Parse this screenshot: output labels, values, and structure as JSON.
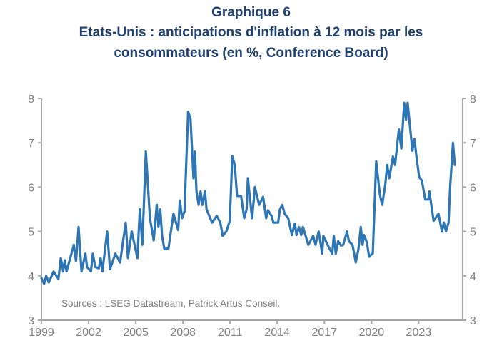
{
  "chart_data": {
    "type": "line",
    "title": [
      "Graphique 6",
      "Etats-Unis : anticipations d'inflation à 12 mois  par les",
      "consommateurs (en %, Conference Board)"
    ],
    "xlabel": "",
    "ylabel": "",
    "xlim": [
      1999,
      2025.8
    ],
    "ylim": [
      3,
      8
    ],
    "x_ticks": [
      1999,
      2002,
      2005,
      2008,
      2011,
      2014,
      2017,
      2020,
      2023
    ],
    "x_tick_labels": [
      "1999",
      "2002",
      "2005",
      "2008",
      "2011",
      "2014",
      "2017",
      "2020",
      "2023"
    ],
    "y_ticks": [
      3,
      4,
      5,
      6,
      7,
      8
    ],
    "y_tick_labels": [
      "3",
      "4",
      "5",
      "6",
      "7",
      "8"
    ],
    "grid": false,
    "source": "Sources : LSEG Datastream, Patrick Artus Conseil.",
    "series": [
      {
        "name": "Anticipations d'inflation à 12 mois",
        "color": "#2e75b6",
        "points": [
          [
            1999.0,
            3.95
          ],
          [
            1999.17,
            3.82
          ],
          [
            1999.3,
            4.0
          ],
          [
            1999.47,
            3.85
          ],
          [
            1999.77,
            4.1
          ],
          [
            2000.08,
            3.93
          ],
          [
            2000.23,
            4.4
          ],
          [
            2000.38,
            4.1
          ],
          [
            2000.48,
            4.35
          ],
          [
            2000.6,
            4.1
          ],
          [
            2001.06,
            4.7
          ],
          [
            2001.2,
            4.33
          ],
          [
            2001.36,
            5.1
          ],
          [
            2001.55,
            4.1
          ],
          [
            2001.8,
            4.5
          ],
          [
            2001.9,
            4.2
          ],
          [
            2002.15,
            4.1
          ],
          [
            2002.27,
            4.5
          ],
          [
            2002.42,
            4.2
          ],
          [
            2002.65,
            4.17
          ],
          [
            2002.76,
            4.4
          ],
          [
            2002.88,
            4.1
          ],
          [
            2003.18,
            5.0
          ],
          [
            2003.36,
            4.15
          ],
          [
            2003.7,
            4.5
          ],
          [
            2004.0,
            4.3
          ],
          [
            2004.36,
            5.2
          ],
          [
            2004.5,
            4.4
          ],
          [
            2004.74,
            5.0
          ],
          [
            2005.1,
            4.4
          ],
          [
            2005.26,
            5.5
          ],
          [
            2005.42,
            4.7
          ],
          [
            2005.64,
            6.8
          ],
          [
            2005.9,
            5.3
          ],
          [
            2006.14,
            4.8
          ],
          [
            2006.33,
            5.6
          ],
          [
            2006.44,
            5.1
          ],
          [
            2006.56,
            5.5
          ],
          [
            2006.67,
            4.9
          ],
          [
            2006.82,
            4.6
          ],
          [
            2007.08,
            4.62
          ],
          [
            2007.4,
            5.4
          ],
          [
            2007.7,
            5.03
          ],
          [
            2007.8,
            5.7
          ],
          [
            2007.95,
            5.3
          ],
          [
            2008.1,
            5.45
          ],
          [
            2008.33,
            7.7
          ],
          [
            2008.48,
            7.55
          ],
          [
            2008.67,
            6.2
          ],
          [
            2008.76,
            6.8
          ],
          [
            2008.86,
            5.9
          ],
          [
            2009.0,
            5.6
          ],
          [
            2009.12,
            5.9
          ],
          [
            2009.24,
            5.6
          ],
          [
            2009.4,
            5.9
          ],
          [
            2009.5,
            5.5
          ],
          [
            2009.85,
            5.2
          ],
          [
            2010.15,
            5.35
          ],
          [
            2010.38,
            5.2
          ],
          [
            2010.53,
            4.9
          ],
          [
            2010.76,
            5.0
          ],
          [
            2010.98,
            5.24
          ],
          [
            2011.14,
            6.7
          ],
          [
            2011.3,
            6.5
          ],
          [
            2011.44,
            5.8
          ],
          [
            2011.7,
            5.8
          ],
          [
            2011.9,
            5.3
          ],
          [
            2012.05,
            5.5
          ],
          [
            2012.13,
            6.2
          ],
          [
            2012.4,
            5.3
          ],
          [
            2012.58,
            6.0
          ],
          [
            2012.85,
            5.6
          ],
          [
            2013.1,
            5.78
          ],
          [
            2013.3,
            5.3
          ],
          [
            2013.41,
            5.48
          ],
          [
            2013.64,
            5.35
          ],
          [
            2013.76,
            5.2
          ],
          [
            2014.06,
            5.2
          ],
          [
            2014.17,
            5.5
          ],
          [
            2014.32,
            5.6
          ],
          [
            2014.47,
            5.4
          ],
          [
            2014.7,
            5.3
          ],
          [
            2014.93,
            4.92
          ],
          [
            2015.12,
            5.18
          ],
          [
            2015.23,
            4.92
          ],
          [
            2015.38,
            5.1
          ],
          [
            2015.53,
            4.92
          ],
          [
            2015.64,
            5.1
          ],
          [
            2015.98,
            4.7
          ],
          [
            2016.29,
            4.9
          ],
          [
            2016.44,
            4.7
          ],
          [
            2016.64,
            5.0
          ],
          [
            2016.86,
            4.5
          ],
          [
            2016.94,
            4.9
          ],
          [
            2017.2,
            4.7
          ],
          [
            2017.5,
            4.5
          ],
          [
            2017.6,
            4.9
          ],
          [
            2017.73,
            4.5
          ],
          [
            2017.88,
            4.78
          ],
          [
            2018.06,
            4.68
          ],
          [
            2018.2,
            4.7
          ],
          [
            2018.44,
            5.0
          ],
          [
            2018.56,
            4.78
          ],
          [
            2018.79,
            4.7
          ],
          [
            2019.0,
            4.3
          ],
          [
            2019.17,
            4.6
          ],
          [
            2019.32,
            5.1
          ],
          [
            2019.43,
            4.7
          ],
          [
            2019.52,
            4.92
          ],
          [
            2019.7,
            4.76
          ],
          [
            2019.85,
            4.43
          ],
          [
            2020.08,
            4.51
          ],
          [
            2020.3,
            6.58
          ],
          [
            2020.53,
            5.83
          ],
          [
            2020.68,
            5.6
          ],
          [
            2020.88,
            6.07
          ],
          [
            2021.0,
            6.5
          ],
          [
            2021.13,
            6.2
          ],
          [
            2021.36,
            6.69
          ],
          [
            2021.5,
            6.5
          ],
          [
            2021.74,
            7.3
          ],
          [
            2021.9,
            6.87
          ],
          [
            2022.08,
            7.9
          ],
          [
            2022.2,
            7.52
          ],
          [
            2022.3,
            7.9
          ],
          [
            2022.6,
            6.82
          ],
          [
            2022.73,
            7.09
          ],
          [
            2022.85,
            6.71
          ],
          [
            2023.03,
            6.23
          ],
          [
            2023.2,
            6.15
          ],
          [
            2023.42,
            5.72
          ],
          [
            2023.62,
            5.72
          ],
          [
            2023.68,
            5.9
          ],
          [
            2023.95,
            5.24
          ],
          [
            2024.26,
            5.4
          ],
          [
            2024.48,
            5.0
          ],
          [
            2024.6,
            5.2
          ],
          [
            2024.74,
            5.0
          ],
          [
            2024.9,
            5.2
          ],
          [
            2025.0,
            6.0
          ],
          [
            2025.18,
            7.0
          ],
          [
            2025.3,
            6.5
          ]
        ]
      }
    ]
  }
}
